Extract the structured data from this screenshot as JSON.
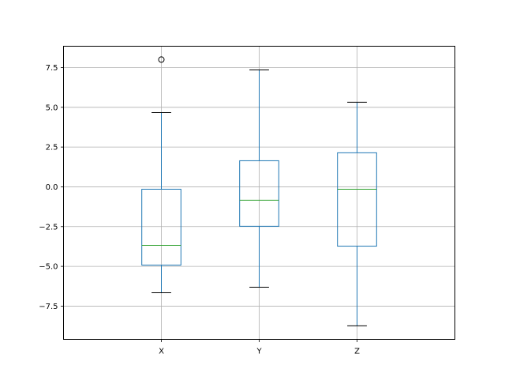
{
  "chart_data": {
    "type": "boxplot",
    "title": "",
    "xlabel": "",
    "ylabel": "",
    "categories": [
      "X",
      "Y",
      "Z"
    ],
    "ylim": [
      -9.59,
      8.84
    ],
    "yticks": [
      -7.5,
      -5.0,
      -2.5,
      0.0,
      2.5,
      5.0,
      7.5
    ],
    "ytick_labels": [
      "−7.5",
      "−5.0",
      "−2.5",
      "0.0",
      "2.5",
      "5.0",
      "7.5"
    ],
    "grid": true,
    "boxes": [
      {
        "name": "X",
        "whisker_low": -6.66,
        "q1": -4.92,
        "median": -3.68,
        "q3": -0.15,
        "whisker_high": 4.67,
        "outliers": [
          8.0
        ]
      },
      {
        "name": "Y",
        "whisker_low": -6.31,
        "q1": -2.48,
        "median": -0.84,
        "q3": 1.64,
        "whisker_high": 7.35,
        "outliers": []
      },
      {
        "name": "Z",
        "whisker_low": -8.74,
        "q1": -3.73,
        "median": -0.15,
        "q3": 2.14,
        "whisker_high": 5.32,
        "outliers": []
      }
    ],
    "colors": {
      "box": "#1f77b4",
      "median": "#2ca02c",
      "cap": "#000000",
      "grid": "#b0b0b0"
    }
  }
}
